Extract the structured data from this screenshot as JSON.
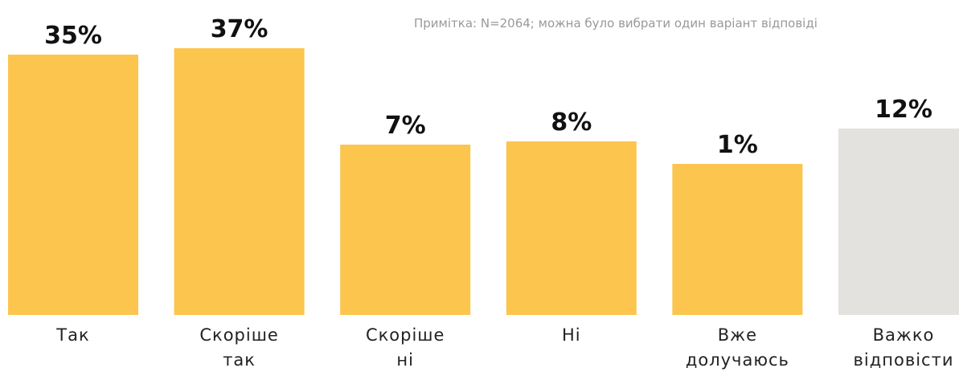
{
  "chart_data": {
    "type": "bar",
    "note": "Примітка: N=2064; можна було вибрати один варіант відповіді",
    "categories": [
      "Так",
      "Скоріше так",
      "Скоріше ні",
      "Ні",
      "Вже долучаюсь",
      "Важко відповісти"
    ],
    "values": [
      35,
      37,
      7,
      8,
      1,
      12
    ],
    "value_labels": [
      "35%",
      "37%",
      "7%",
      "8%",
      "1%",
      "12%"
    ],
    "colors": [
      "#fcc54e",
      "#fcc54e",
      "#fcc54e",
      "#fcc54e",
      "#fcc54e",
      "#e3e2df"
    ],
    "ylim": [
      -46,
      37
    ]
  }
}
